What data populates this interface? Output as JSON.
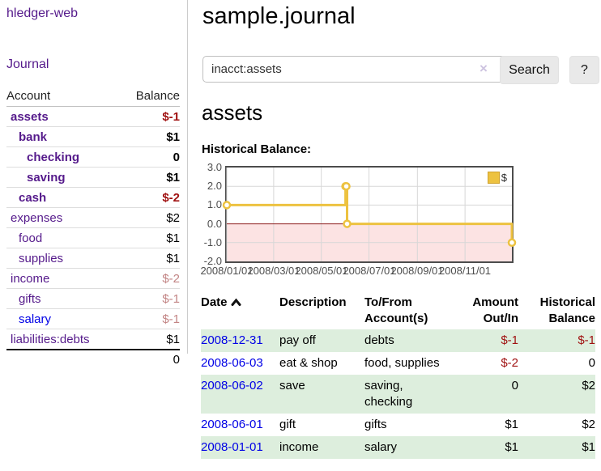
{
  "app_title": "hledger-web",
  "sidebar": {
    "nav_journal": "Journal",
    "accounts": {
      "header_account": "Account",
      "header_balance": "Balance",
      "rows": [
        {
          "name": "assets",
          "depth": 0,
          "bold": true,
          "link": "visited",
          "balance": "$-1",
          "bstyle": "neg",
          "bbold": true
        },
        {
          "name": "bank",
          "depth": 1,
          "bold": true,
          "link": "visited",
          "balance": "$1",
          "bstyle": "",
          "bbold": true
        },
        {
          "name": "checking",
          "depth": 2,
          "bold": true,
          "link": "visited",
          "balance": "0",
          "bstyle": "",
          "bbold": true
        },
        {
          "name": "saving",
          "depth": 2,
          "bold": true,
          "link": "visited",
          "balance": "$1",
          "bstyle": "",
          "bbold": true
        },
        {
          "name": "cash",
          "depth": 1,
          "bold": true,
          "link": "visited",
          "balance": "$-2",
          "bstyle": "neg",
          "bbold": true
        },
        {
          "name": "expenses",
          "depth": 0,
          "bold": false,
          "link": "visited",
          "balance": "$2",
          "bstyle": "",
          "bbold": false
        },
        {
          "name": "food",
          "depth": 1,
          "bold": false,
          "link": "visited",
          "balance": "$1",
          "bstyle": "",
          "bbold": false
        },
        {
          "name": "supplies",
          "depth": 1,
          "bold": false,
          "link": "visited",
          "balance": "$1",
          "bstyle": "",
          "bbold": false
        },
        {
          "name": "income",
          "depth": 0,
          "bold": false,
          "link": "visited",
          "balance": "$-2",
          "bstyle": "dimneg",
          "bbold": false
        },
        {
          "name": "gifts",
          "depth": 1,
          "bold": false,
          "link": "visited",
          "balance": "$-1",
          "bstyle": "dimneg",
          "bbold": false
        },
        {
          "name": "salary",
          "depth": 1,
          "bold": false,
          "link": "unvisited",
          "balance": "$-1",
          "bstyle": "dimneg",
          "bbold": false
        },
        {
          "name": "liabilities:debts",
          "depth": 0,
          "bold": false,
          "link": "visited",
          "balance": "$1",
          "bstyle": "",
          "bbold": false
        }
      ],
      "total": "0"
    }
  },
  "main": {
    "title": "sample.journal",
    "search": {
      "value": "inacct:assets",
      "clear_symbol": "×",
      "button_label": "Search",
      "help_label": "?"
    },
    "account_heading": "assets",
    "section_label": "Historical Balance:"
  },
  "chart_data": {
    "type": "line",
    "step": true,
    "title": "Historical Balance:",
    "legend": [
      {
        "label": "$",
        "color": "#edc240"
      }
    ],
    "series": [
      {
        "name": "$",
        "points": [
          {
            "date": "2008-01-01",
            "day": 0,
            "value": 1
          },
          {
            "date": "2008-06-01",
            "day": 152,
            "value": 2
          },
          {
            "date": "2008-06-02",
            "day": 153,
            "value": 2
          },
          {
            "date": "2008-06-03",
            "day": 154,
            "value": 0
          },
          {
            "date": "2008-12-31",
            "day": 365,
            "value": -1
          }
        ]
      }
    ],
    "x_tick_labels": [
      "2008/01/01",
      "2008/03/01",
      "2008/05/01",
      "2008/07/01",
      "2008/09/01",
      "2008/11/01"
    ],
    "x_tick_days": [
      0,
      60,
      121,
      182,
      244,
      305
    ],
    "x_range_days": 365,
    "y_tick_labels": [
      "3.0",
      "2.0",
      "1.0",
      "0.0",
      "-1.0",
      "-2.0"
    ],
    "ylim": [
      -2,
      3
    ],
    "grid": true,
    "legend_position": "top-right",
    "series_color": "#edc240",
    "negative_region_color": "#fce3e3",
    "zero_line_color": "#8f1f1f"
  },
  "register": {
    "headers": {
      "date": "Date",
      "description": "Description",
      "tofrom": "To/From Account(s)",
      "amount": "Amount Out/In",
      "balance": "Historical Balance"
    },
    "rows": [
      {
        "date": "2008-12-31",
        "description": "pay off",
        "tofrom": "debts",
        "amount": "$-1",
        "amount_neg": true,
        "balance": "$-1",
        "balance_neg": true
      },
      {
        "date": "2008-06-03",
        "description": "eat & shop",
        "tofrom": "food, supplies",
        "amount": "$-2",
        "amount_neg": true,
        "balance": "0",
        "balance_neg": false
      },
      {
        "date": "2008-06-02",
        "description": "save",
        "tofrom": "saving, checking",
        "amount": "0",
        "amount_neg": false,
        "balance": "$2",
        "balance_neg": false
      },
      {
        "date": "2008-06-01",
        "description": "gift",
        "tofrom": "gifts",
        "amount": "$1",
        "amount_neg": false,
        "balance": "$2",
        "balance_neg": false
      },
      {
        "date": "2008-01-01",
        "description": "income",
        "tofrom": "salary",
        "amount": "$1",
        "amount_neg": false,
        "balance": "$1",
        "balance_neg": false
      }
    ]
  }
}
